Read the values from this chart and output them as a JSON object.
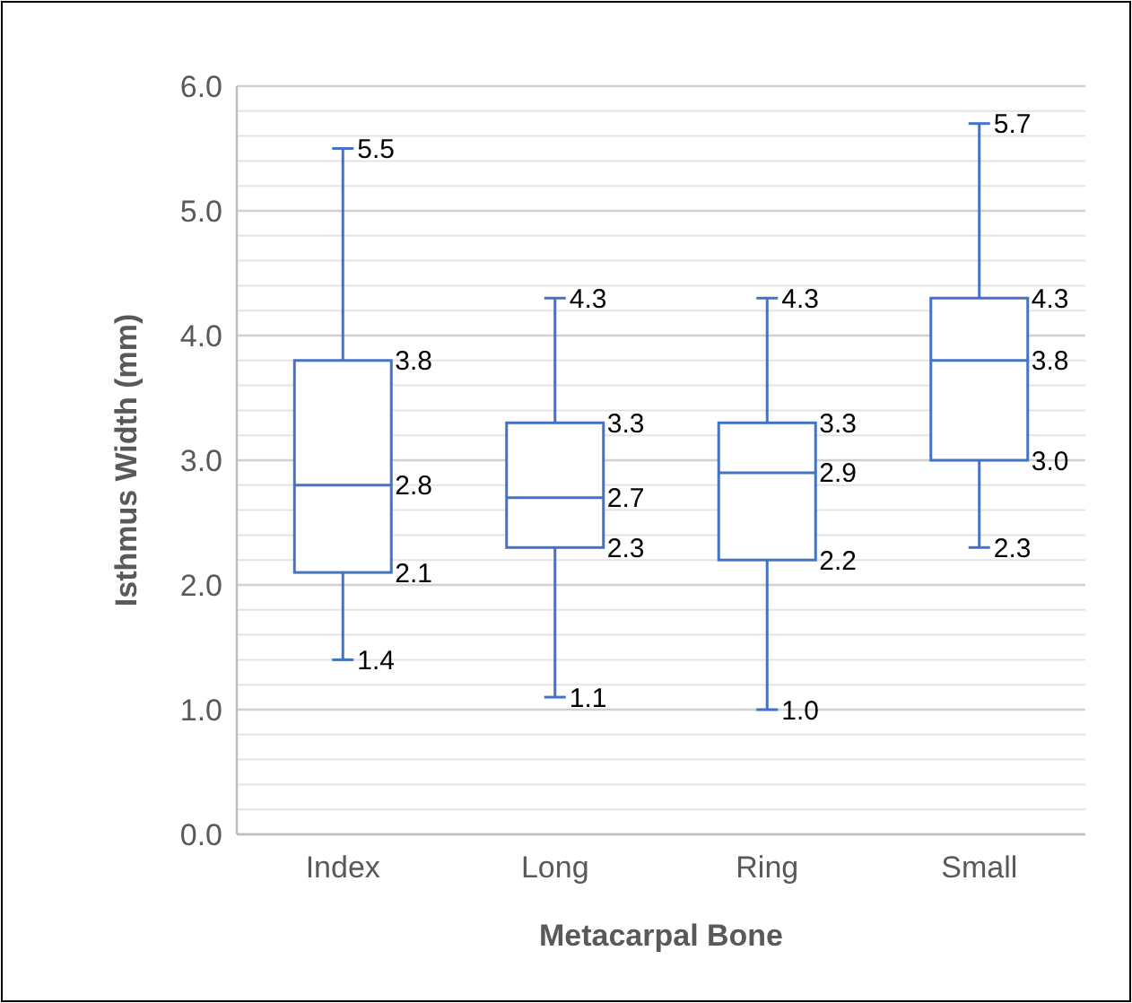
{
  "chart_data": {
    "type": "box",
    "xlabel": "Metacarpal Bone",
    "ylabel": "Isthmus Width (mm)",
    "categories": [
      "Index",
      "Long",
      "Ring",
      "Small"
    ],
    "boxes": [
      {
        "low": 1.4,
        "q1": 2.1,
        "median": 2.8,
        "q3": 3.8,
        "high": 5.5
      },
      {
        "low": 1.1,
        "q1": 2.3,
        "median": 2.7,
        "q3": 3.3,
        "high": 4.3
      },
      {
        "low": 1.0,
        "q1": 2.2,
        "median": 2.9,
        "q3": 3.3,
        "high": 4.3
      },
      {
        "low": 2.3,
        "q1": 3.0,
        "median": 3.8,
        "q3": 4.3,
        "high": 5.7
      }
    ],
    "color": "#4472c4",
    "ylim": [
      0,
      6
    ],
    "yticks": [
      {
        "value": 0,
        "label": "0.0"
      },
      {
        "value": 0.2,
        "label": null
      },
      {
        "value": 0.4,
        "label": null
      },
      {
        "value": 0.6,
        "label": null
      },
      {
        "value": 0.8,
        "label": null
      },
      {
        "value": 1,
        "label": "1.0"
      },
      {
        "value": 1.2,
        "label": null
      },
      {
        "value": 1.4,
        "label": null
      },
      {
        "value": 1.6,
        "label": null
      },
      {
        "value": 1.8,
        "label": null
      },
      {
        "value": 2,
        "label": "2.0"
      },
      {
        "value": 2.2,
        "label": null
      },
      {
        "value": 2.4,
        "label": null
      },
      {
        "value": 2.6,
        "label": null
      },
      {
        "value": 2.8,
        "label": null
      },
      {
        "value": 3,
        "label": "3.0"
      },
      {
        "value": 3.2,
        "label": null
      },
      {
        "value": 3.4,
        "label": null
      },
      {
        "value": 3.6,
        "label": null
      },
      {
        "value": 3.8,
        "label": null
      },
      {
        "value": 4,
        "label": "4.0"
      },
      {
        "value": 4.2,
        "label": null
      },
      {
        "value": 4.4,
        "label": null
      },
      {
        "value": 4.6,
        "label": null
      },
      {
        "value": 4.8,
        "label": null
      },
      {
        "value": 5,
        "label": "5.0"
      },
      {
        "value": 5.2,
        "label": null
      },
      {
        "value": 5.4,
        "label": null
      },
      {
        "value": 5.6,
        "label": null
      },
      {
        "value": 5.8,
        "label": null
      },
      {
        "value": 6,
        "label": "6.0"
      }
    ],
    "grid": true,
    "annotations": [
      {
        "text": "5.5",
        "x": "Index",
        "y": 5.5
      },
      {
        "text": "3.8",
        "x": "Index",
        "y": 3.8
      },
      {
        "text": "2.8",
        "x": "Index",
        "y": 2.8
      },
      {
        "text": "2.1",
        "x": "Index",
        "y": 2.1
      },
      {
        "text": "1.4",
        "x": "Index",
        "y": 1.4
      },
      {
        "text": "4.3",
        "x": "Long",
        "y": 4.3
      },
      {
        "text": "3.3",
        "x": "Long",
        "y": 3.3
      },
      {
        "text": "2.7",
        "x": "Long",
        "y": 2.7
      },
      {
        "text": "2.3",
        "x": "Long",
        "y": 2.3
      },
      {
        "text": "1.1",
        "x": "Long",
        "y": 1.1
      },
      {
        "text": "4.3",
        "x": "Ring",
        "y": 4.3
      },
      {
        "text": "3.3",
        "x": "Ring",
        "y": 3.3
      },
      {
        "text": "2.9",
        "x": "Ring",
        "y": 2.9
      },
      {
        "text": "2.2",
        "x": "Ring",
        "y": 2.2
      },
      {
        "text": "1.0",
        "x": "Ring",
        "y": 1.0
      },
      {
        "text": "5.7",
        "x": "Small",
        "y": 5.7
      },
      {
        "text": "4.3",
        "x": "Small",
        "y": 4.3
      },
      {
        "text": "3.8",
        "x": "Small",
        "y": 3.8
      },
      {
        "text": "3.0",
        "x": "Small",
        "y": 3.0
      },
      {
        "text": "2.3",
        "x": "Small",
        "y": 2.3
      }
    ]
  }
}
